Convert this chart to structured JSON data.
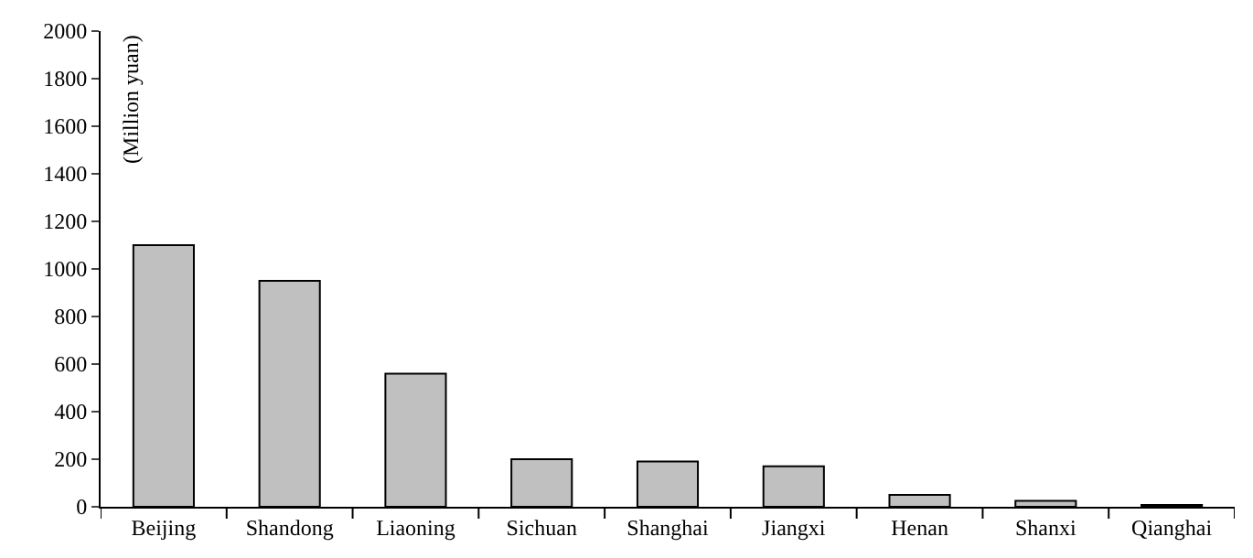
{
  "chart_data": {
    "type": "bar",
    "ylabel": "(Million yuan)",
    "categories": [
      "Beijing",
      "Shandong",
      "Liaoning",
      "Sichuan",
      "Shanghai",
      "Jiangxi",
      "Henan",
      "Shanxi",
      "Qianghai"
    ],
    "values": [
      1100,
      950,
      560,
      200,
      190,
      170,
      50,
      25,
      8
    ],
    "color": "#c0c0c0",
    "ylim": [
      0,
      2000
    ],
    "yticks": [
      0,
      200,
      400,
      600,
      800,
      1000,
      1200,
      1400,
      1600,
      1800,
      2000
    ],
    "tick_labels": true
  }
}
